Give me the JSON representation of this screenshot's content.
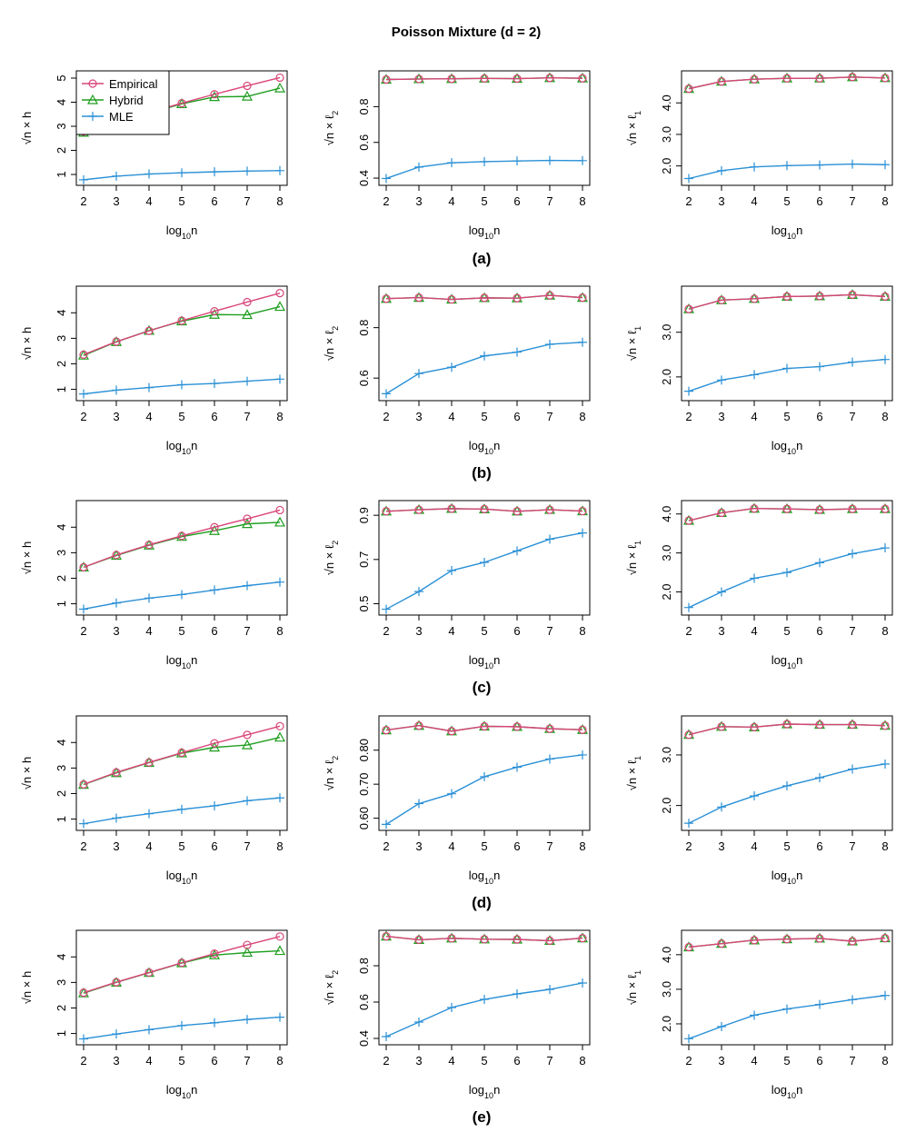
{
  "figure": {
    "title": "Poisson Mixture (d = 2)"
  },
  "colors": {
    "Empirical": "#d9457a",
    "Hybrid": "#1f9e1f",
    "MLE": "#2a90d6"
  },
  "chart_data": [
    {
      "type": "line",
      "panel": "(a)",
      "legend": "top-left",
      "xlabel": "log10n",
      "ylabel": "√n × h",
      "x": [
        2,
        3,
        4,
        5,
        6,
        7,
        8
      ],
      "xlim": [
        2,
        8
      ],
      "ylim": [
        0.7,
        5.15
      ],
      "yticks": [
        1,
        2,
        3,
        4,
        5
      ],
      "ytick_labels": [
        "1",
        "2",
        "3",
        "4",
        "5"
      ],
      "series": [
        {
          "name": "Empirical",
          "marker": "circle",
          "values": [
            2.78,
            3.17,
            3.57,
            3.96,
            4.33,
            4.68,
            5.02
          ]
        },
        {
          "name": "Hybrid",
          "marker": "triangle",
          "values": [
            2.74,
            3.17,
            3.55,
            3.93,
            4.22,
            4.24,
            4.58
          ]
        },
        {
          "name": "MLE",
          "marker": "plus",
          "values": [
            0.78,
            0.93,
            1.02,
            1.07,
            1.11,
            1.14,
            1.16
          ]
        }
      ]
    },
    {
      "type": "line",
      "panel": "(a)",
      "legend": "none",
      "xlabel": "log10n",
      "ylabel": "√n × ℓ2",
      "x": [
        2,
        3,
        4,
        5,
        6,
        7,
        8
      ],
      "xlim": [
        2,
        8
      ],
      "ylim": [
        0.38,
        0.98
      ],
      "yticks": [
        0.4,
        0.6,
        0.8
      ],
      "ytick_labels": [
        "0.4",
        "0.6",
        "0.8"
      ],
      "series": [
        {
          "name": "Empirical",
          "marker": "circle",
          "values": [
            0.952,
            0.955,
            0.956,
            0.958,
            0.957,
            0.961,
            0.959
          ]
        },
        {
          "name": "Hybrid",
          "marker": "triangle",
          "values": [
            0.952,
            0.955,
            0.956,
            0.958,
            0.957,
            0.961,
            0.959
          ]
        },
        {
          "name": "MLE",
          "marker": "plus",
          "values": [
            0.398,
            0.462,
            0.486,
            0.492,
            0.496,
            0.499,
            0.498
          ]
        }
      ]
    },
    {
      "type": "line",
      "panel": "(a)",
      "legend": "none",
      "xlabel": "log10n",
      "ylabel": "√n × ℓ1",
      "x": [
        2,
        3,
        4,
        5,
        6,
        7,
        8
      ],
      "xlim": [
        2,
        8
      ],
      "ylim": [
        1.5,
        4.9
      ],
      "yticks": [
        2.0,
        3.0,
        4.0
      ],
      "ytick_labels": [
        "2.0",
        "3.0",
        "4.0"
      ],
      "series": [
        {
          "name": "Empirical",
          "marker": "circle",
          "values": [
            4.45,
            4.68,
            4.75,
            4.78,
            4.78,
            4.82,
            4.79
          ]
        },
        {
          "name": "Hybrid",
          "marker": "triangle",
          "values": [
            4.45,
            4.68,
            4.75,
            4.78,
            4.78,
            4.82,
            4.79
          ]
        },
        {
          "name": "MLE",
          "marker": "plus",
          "values": [
            1.6,
            1.85,
            1.97,
            2.01,
            2.03,
            2.06,
            2.04
          ]
        }
      ]
    },
    {
      "type": "line",
      "panel": "(b)",
      "legend": "none",
      "xlabel": "log10n",
      "ylabel": "√n × h",
      "x": [
        2,
        3,
        4,
        5,
        6,
        7,
        8
      ],
      "xlim": [
        2,
        8
      ],
      "ylim": [
        0.7,
        4.9
      ],
      "yticks": [
        1,
        2,
        3,
        4
      ],
      "ytick_labels": [
        "1",
        "2",
        "3",
        "4"
      ],
      "series": [
        {
          "name": "Empirical",
          "marker": "circle",
          "values": [
            2.36,
            2.87,
            3.29,
            3.69,
            4.06,
            4.42,
            4.77
          ]
        },
        {
          "name": "Hybrid",
          "marker": "triangle",
          "values": [
            2.33,
            2.86,
            3.3,
            3.67,
            3.93,
            3.92,
            4.24
          ]
        },
        {
          "name": "MLE",
          "marker": "plus",
          "values": [
            0.82,
            0.97,
            1.07,
            1.18,
            1.23,
            1.32,
            1.4
          ]
        }
      ]
    },
    {
      "type": "line",
      "panel": "(b)",
      "legend": "none",
      "xlabel": "log10n",
      "ylabel": "√n × ℓ2",
      "x": [
        2,
        3,
        4,
        5,
        6,
        7,
        8
      ],
      "xlim": [
        2,
        8
      ],
      "ylim": [
        0.525,
        0.95
      ],
      "yticks": [
        0.6,
        0.8
      ],
      "ytick_labels": [
        "0.6",
        "0.8"
      ],
      "series": [
        {
          "name": "Empirical",
          "marker": "circle",
          "values": [
            0.915,
            0.919,
            0.912,
            0.918,
            0.917,
            0.928,
            0.919
          ]
        },
        {
          "name": "Hybrid",
          "marker": "triangle",
          "values": [
            0.915,
            0.919,
            0.912,
            0.918,
            0.917,
            0.928,
            0.919
          ]
        },
        {
          "name": "MLE",
          "marker": "plus",
          "values": [
            0.538,
            0.618,
            0.643,
            0.688,
            0.703,
            0.734,
            0.742
          ]
        }
      ]
    },
    {
      "type": "line",
      "panel": "(b)",
      "legend": "none",
      "xlabel": "log10n",
      "ylabel": "√n × ℓ1",
      "x": [
        2,
        3,
        4,
        5,
        6,
        7,
        8
      ],
      "xlim": [
        2,
        8
      ],
      "ylim": [
        1.55,
        3.95
      ],
      "yticks": [
        2.0,
        3.0
      ],
      "ytick_labels": [
        "2.0",
        "3.0"
      ],
      "series": [
        {
          "name": "Empirical",
          "marker": "circle",
          "values": [
            3.52,
            3.72,
            3.75,
            3.8,
            3.81,
            3.84,
            3.8
          ]
        },
        {
          "name": "Hybrid",
          "marker": "triangle",
          "values": [
            3.52,
            3.72,
            3.75,
            3.8,
            3.81,
            3.84,
            3.8
          ]
        },
        {
          "name": "MLE",
          "marker": "plus",
          "values": [
            1.68,
            1.93,
            2.05,
            2.19,
            2.23,
            2.33,
            2.39
          ]
        }
      ]
    },
    {
      "type": "line",
      "panel": "(c)",
      "legend": "none",
      "xlabel": "log10n",
      "ylabel": "√n × h",
      "x": [
        2,
        3,
        4,
        5,
        6,
        7,
        8
      ],
      "xlim": [
        2,
        8
      ],
      "ylim": [
        0.7,
        4.9
      ],
      "yticks": [
        1,
        2,
        3,
        4
      ],
      "ytick_labels": [
        "1",
        "2",
        "3",
        "4"
      ],
      "series": [
        {
          "name": "Empirical",
          "marker": "circle",
          "values": [
            2.43,
            2.91,
            3.31,
            3.66,
            4.0,
            4.33,
            4.67
          ]
        },
        {
          "name": "Hybrid",
          "marker": "triangle",
          "values": [
            2.43,
            2.89,
            3.29,
            3.63,
            3.86,
            4.13,
            4.19
          ]
        },
        {
          "name": "MLE",
          "marker": "plus",
          "values": [
            0.79,
            1.03,
            1.22,
            1.36,
            1.54,
            1.71,
            1.85
          ]
        }
      ]
    },
    {
      "type": "line",
      "panel": "(c)",
      "legend": "none",
      "xlabel": "log10n",
      "ylabel": "√n × ℓ2",
      "x": [
        2,
        3,
        4,
        5,
        6,
        7,
        8
      ],
      "xlim": [
        2,
        8
      ],
      "ylim": [
        0.465,
        0.95
      ],
      "yticks": [
        0.5,
        0.7,
        0.9
      ],
      "ytick_labels": [
        "0.5",
        "0.7",
        "0.9"
      ],
      "series": [
        {
          "name": "Empirical",
          "marker": "circle",
          "values": [
            0.918,
            0.925,
            0.93,
            0.928,
            0.918,
            0.925,
            0.919
          ]
        },
        {
          "name": "Hybrid",
          "marker": "triangle",
          "values": [
            0.918,
            0.925,
            0.93,
            0.928,
            0.918,
            0.925,
            0.919
          ]
        },
        {
          "name": "MLE",
          "marker": "plus",
          "values": [
            0.475,
            0.555,
            0.65,
            0.687,
            0.739,
            0.792,
            0.82
          ]
        }
      ]
    },
    {
      "type": "line",
      "panel": "(c)",
      "legend": "none",
      "xlabel": "log10n",
      "ylabel": "√n × ℓ1",
      "x": [
        2,
        3,
        4,
        5,
        6,
        7,
        8
      ],
      "xlim": [
        2,
        8
      ],
      "ylim": [
        1.5,
        4.25
      ],
      "yticks": [
        2.0,
        3.0,
        4.0
      ],
      "ytick_labels": [
        "2.0",
        "3.0",
        "4.0"
      ],
      "series": [
        {
          "name": "Empirical",
          "marker": "circle",
          "values": [
            3.83,
            4.03,
            4.14,
            4.13,
            4.11,
            4.13,
            4.13
          ]
        },
        {
          "name": "Hybrid",
          "marker": "triangle",
          "values": [
            3.83,
            4.03,
            4.14,
            4.13,
            4.11,
            4.13,
            4.13
          ]
        },
        {
          "name": "MLE",
          "marker": "plus",
          "values": [
            1.6,
            2.0,
            2.35,
            2.5,
            2.75,
            2.98,
            3.13
          ]
        }
      ]
    },
    {
      "type": "line",
      "panel": "(d)",
      "legend": "none",
      "xlabel": "log10n",
      "ylabel": "√n × h",
      "x": [
        2,
        3,
        4,
        5,
        6,
        7,
        8
      ],
      "xlim": [
        2,
        8
      ],
      "ylim": [
        0.7,
        4.9
      ],
      "yticks": [
        1,
        2,
        3,
        4
      ],
      "ytick_labels": [
        "1",
        "2",
        "3",
        "4"
      ],
      "series": [
        {
          "name": "Empirical",
          "marker": "circle",
          "values": [
            2.36,
            2.83,
            3.22,
            3.6,
            3.97,
            4.3,
            4.64
          ]
        },
        {
          "name": "Hybrid",
          "marker": "triangle",
          "values": [
            2.35,
            2.81,
            3.21,
            3.58,
            3.81,
            3.9,
            4.2
          ]
        },
        {
          "name": "MLE",
          "marker": "plus",
          "values": [
            0.82,
            1.04,
            1.21,
            1.38,
            1.52,
            1.72,
            1.83
          ]
        }
      ]
    },
    {
      "type": "line",
      "panel": "(d)",
      "legend": "none",
      "xlabel": "log10n",
      "ylabel": "√n × ℓ2",
      "x": [
        2,
        3,
        4,
        5,
        6,
        7,
        8
      ],
      "xlim": [
        2,
        8
      ],
      "ylim": [
        0.575,
        0.89
      ],
      "yticks": [
        0.6,
        0.7,
        0.8
      ],
      "ytick_labels": [
        "0.60",
        "0.70",
        "0.80"
      ],
      "series": [
        {
          "name": "Empirical",
          "marker": "circle",
          "values": [
            0.859,
            0.872,
            0.856,
            0.87,
            0.869,
            0.863,
            0.86
          ]
        },
        {
          "name": "Hybrid",
          "marker": "triangle",
          "values": [
            0.859,
            0.872,
            0.856,
            0.87,
            0.869,
            0.863,
            0.86
          ]
        },
        {
          "name": "MLE",
          "marker": "plus",
          "values": [
            0.582,
            0.643,
            0.672,
            0.722,
            0.75,
            0.774,
            0.786
          ]
        }
      ]
    },
    {
      "type": "line",
      "panel": "(d)",
      "legend": "none",
      "xlabel": "log10n",
      "ylabel": "√n × ℓ1",
      "x": [
        2,
        3,
        4,
        5,
        6,
        7,
        8
      ],
      "xlim": [
        2,
        8
      ],
      "ylim": [
        1.58,
        3.7
      ],
      "yticks": [
        2.0,
        3.0
      ],
      "ytick_labels": [
        "2.0",
        "3.0"
      ],
      "series": [
        {
          "name": "Empirical",
          "marker": "circle",
          "values": [
            3.4,
            3.56,
            3.55,
            3.61,
            3.6,
            3.6,
            3.58
          ]
        },
        {
          "name": "Hybrid",
          "marker": "triangle",
          "values": [
            3.4,
            3.56,
            3.55,
            3.61,
            3.6,
            3.6,
            3.58
          ]
        },
        {
          "name": "MLE",
          "marker": "plus",
          "values": [
            1.65,
            1.97,
            2.19,
            2.39,
            2.55,
            2.72,
            2.82
          ]
        }
      ]
    },
    {
      "type": "line",
      "panel": "(e)",
      "legend": "none",
      "xlabel": "log10n",
      "ylabel": "√n × h",
      "x": [
        2,
        3,
        4,
        5,
        6,
        7,
        8
      ],
      "xlim": [
        2,
        8
      ],
      "ylim": [
        0.7,
        4.9
      ],
      "yticks": [
        1,
        2,
        3,
        4
      ],
      "ytick_labels": [
        "1",
        "2",
        "3",
        "4"
      ],
      "series": [
        {
          "name": "Empirical",
          "marker": "circle",
          "values": [
            2.6,
            3.01,
            3.39,
            3.77,
            4.13,
            4.47,
            4.8
          ]
        },
        {
          "name": "Hybrid",
          "marker": "triangle",
          "values": [
            2.58,
            3.0,
            3.38,
            3.76,
            4.07,
            4.17,
            4.24
          ]
        },
        {
          "name": "MLE",
          "marker": "plus",
          "values": [
            0.79,
            0.98,
            1.15,
            1.31,
            1.42,
            1.55,
            1.64
          ]
        }
      ]
    },
    {
      "type": "line",
      "panel": "(e)",
      "legend": "none",
      "xlabel": "log10n",
      "ylabel": "√n × ℓ2",
      "x": [
        2,
        3,
        4,
        5,
        6,
        7,
        8
      ],
      "xlim": [
        2,
        8
      ],
      "ylim": [
        0.385,
        0.975
      ],
      "yticks": [
        0.4,
        0.6,
        0.8
      ],
      "ytick_labels": [
        "0.4",
        "0.6",
        "0.8"
      ],
      "series": [
        {
          "name": "Empirical",
          "marker": "circle",
          "values": [
            0.962,
            0.943,
            0.951,
            0.946,
            0.945,
            0.938,
            0.952
          ]
        },
        {
          "name": "Hybrid",
          "marker": "triangle",
          "values": [
            0.962,
            0.943,
            0.951,
            0.946,
            0.945,
            0.938,
            0.952
          ]
        },
        {
          "name": "MLE",
          "marker": "plus",
          "values": [
            0.41,
            0.49,
            0.57,
            0.615,
            0.645,
            0.67,
            0.705
          ]
        }
      ]
    },
    {
      "type": "line",
      "panel": "(e)",
      "legend": "none",
      "xlabel": "log10n",
      "ylabel": "√n × ℓ1",
      "x": [
        2,
        3,
        4,
        5,
        6,
        7,
        8
      ],
      "xlim": [
        2,
        8
      ],
      "ylim": [
        1.5,
        4.6
      ],
      "yticks": [
        2.0,
        3.0,
        4.0
      ],
      "ytick_labels": [
        "2.0",
        "3.0",
        "4.0"
      ],
      "series": [
        {
          "name": "Empirical",
          "marker": "circle",
          "values": [
            4.22,
            4.32,
            4.42,
            4.45,
            4.47,
            4.39,
            4.48
          ]
        },
        {
          "name": "Hybrid",
          "marker": "triangle",
          "values": [
            4.22,
            4.32,
            4.42,
            4.45,
            4.47,
            4.39,
            4.48
          ]
        },
        {
          "name": "MLE",
          "marker": "plus",
          "values": [
            1.57,
            1.92,
            2.25,
            2.43,
            2.56,
            2.7,
            2.82
          ]
        }
      ]
    }
  ]
}
